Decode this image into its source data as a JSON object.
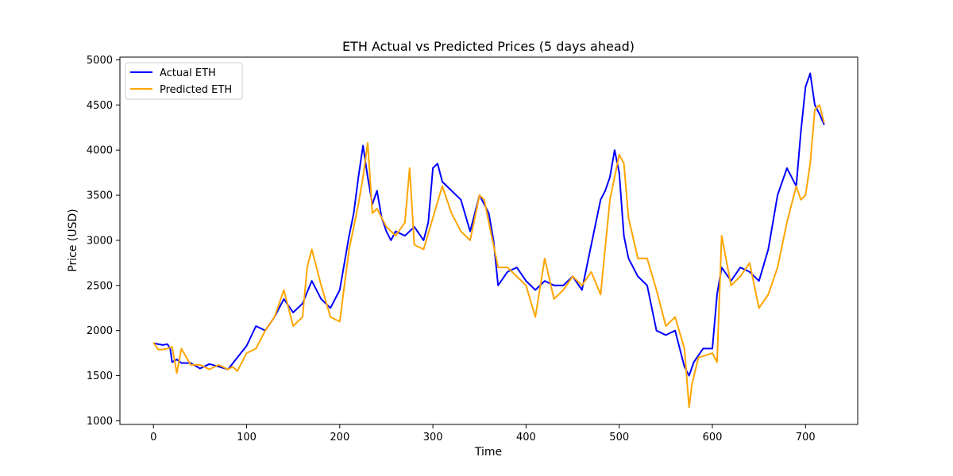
{
  "chart_data": {
    "type": "line",
    "title": "ETH Actual vs Predicted Prices (5 days ahead)",
    "xlabel": "Time",
    "ylabel": "Price (USD)",
    "xlim": [
      -36,
      756
    ],
    "ylim": [
      960,
      5030
    ],
    "xticks": [
      0,
      100,
      200,
      300,
      400,
      500,
      600,
      700
    ],
    "yticks": [
      1000,
      1500,
      2000,
      2500,
      3000,
      3500,
      4000,
      4500,
      5000
    ],
    "grid": false,
    "legend_position": "top-left",
    "series": [
      {
        "name": "Actual ETH",
        "color": "#0000ff",
        "x": [
          0,
          10,
          15,
          18,
          20,
          25,
          30,
          40,
          50,
          60,
          70,
          80,
          90,
          100,
          110,
          120,
          130,
          140,
          150,
          160,
          170,
          180,
          190,
          200,
          210,
          215,
          220,
          225,
          230,
          235,
          240,
          245,
          250,
          255,
          260,
          270,
          280,
          290,
          295,
          300,
          305,
          310,
          320,
          330,
          340,
          350,
          360,
          365,
          370,
          380,
          390,
          400,
          410,
          420,
          430,
          440,
          450,
          460,
          470,
          480,
          485,
          490,
          495,
          500,
          505,
          510,
          520,
          530,
          540,
          550,
          560,
          570,
          575,
          580,
          590,
          600,
          605,
          610,
          620,
          630,
          640,
          650,
          660,
          670,
          680,
          690,
          695,
          700,
          705,
          710,
          715,
          720
        ],
        "values": [
          1860,
          1840,
          1850,
          1800,
          1650,
          1680,
          1640,
          1640,
          1580,
          1630,
          1600,
          1570,
          1700,
          1830,
          2050,
          2000,
          2150,
          2350,
          2200,
          2300,
          2550,
          2350,
          2250,
          2450,
          3050,
          3300,
          3700,
          4050,
          3700,
          3400,
          3550,
          3250,
          3100,
          3000,
          3100,
          3050,
          3150,
          3000,
          3200,
          3800,
          3850,
          3650,
          3550,
          3450,
          3100,
          3500,
          3300,
          3000,
          2500,
          2650,
          2700,
          2550,
          2450,
          2550,
          2500,
          2500,
          2600,
          2450,
          2950,
          3450,
          3550,
          3700,
          4000,
          3750,
          3050,
          2800,
          2600,
          2500,
          2000,
          1950,
          2000,
          1600,
          1500,
          1650,
          1800,
          1800,
          2400,
          2700,
          2550,
          2700,
          2650,
          2550,
          2900,
          3500,
          3800,
          3600,
          4200,
          4700,
          4850,
          4500,
          4400,
          4280
        ]
      },
      {
        "name": "Predicted ETH",
        "color": "#ffa500",
        "x": [
          0,
          5,
          10,
          15,
          20,
          25,
          30,
          40,
          50,
          60,
          70,
          80,
          85,
          90,
          100,
          110,
          120,
          130,
          140,
          150,
          160,
          165,
          170,
          180,
          190,
          200,
          210,
          220,
          225,
          230,
          235,
          240,
          250,
          260,
          270,
          275,
          280,
          290,
          300,
          310,
          320,
          330,
          340,
          350,
          355,
          360,
          370,
          380,
          390,
          400,
          410,
          420,
          430,
          440,
          450,
          460,
          470,
          480,
          490,
          495,
          500,
          505,
          510,
          520,
          530,
          540,
          550,
          560,
          570,
          575,
          578,
          585,
          600,
          605,
          610,
          620,
          630,
          640,
          650,
          660,
          670,
          680,
          690,
          695,
          700,
          705,
          710,
          715,
          720
        ],
        "values": [
          1870,
          1790,
          1790,
          1800,
          1820,
          1530,
          1800,
          1620,
          1620,
          1570,
          1620,
          1570,
          1600,
          1550,
          1750,
          1800,
          2000,
          2150,
          2450,
          2050,
          2150,
          2700,
          2900,
          2500,
          2150,
          2100,
          2900,
          3400,
          3700,
          4080,
          3300,
          3350,
          3150,
          3050,
          3200,
          3800,
          2950,
          2900,
          3250,
          3600,
          3300,
          3100,
          3000,
          3500,
          3450,
          3200,
          2700,
          2700,
          2600,
          2500,
          2150,
          2800,
          2350,
          2450,
          2600,
          2500,
          2650,
          2400,
          3450,
          3700,
          3950,
          3850,
          3250,
          2800,
          2800,
          2450,
          2050,
          2150,
          1800,
          1150,
          1400,
          1700,
          1750,
          1650,
          3050,
          2500,
          2600,
          2750,
          2250,
          2400,
          2700,
          3200,
          3600,
          3450,
          3500,
          3850,
          4450,
          4500,
          4300
        ]
      }
    ]
  }
}
